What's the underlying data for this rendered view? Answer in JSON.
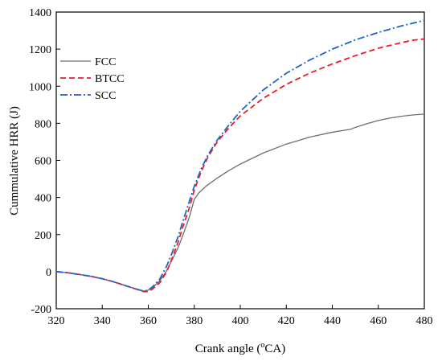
{
  "chart_data": {
    "type": "line",
    "title": "",
    "xlabel_main": "Crank angle (",
    "xlabel_sup": "o",
    "xlabel_tail": "CA)",
    "ylabel": "Cummulative HRR (J)",
    "xlim": [
      320,
      480
    ],
    "ylim": [
      -200,
      1400
    ],
    "xticks": [
      320,
      340,
      360,
      380,
      400,
      420,
      440,
      460,
      480
    ],
    "yticks": [
      -200,
      0,
      200,
      400,
      600,
      800,
      1000,
      1200,
      1400
    ],
    "legend_position": "upper-left",
    "grid": false,
    "series": [
      {
        "name": "FCC",
        "color": "#6e6e6e",
        "dash": "solid",
        "x": [
          320,
          325,
          330,
          335,
          340,
          345,
          350,
          355,
          358,
          360,
          362,
          365,
          368,
          370,
          373,
          375,
          378,
          380,
          382,
          385,
          390,
          395,
          400,
          410,
          420,
          430,
          440,
          445,
          448,
          450,
          455,
          460,
          465,
          470,
          475,
          480
        ],
        "y": [
          0,
          -6,
          -15,
          -25,
          -38,
          -55,
          -75,
          -95,
          -105,
          -100,
          -85,
          -50,
          5,
          55,
          130,
          195,
          300,
          390,
          425,
          460,
          505,
          545,
          580,
          640,
          688,
          725,
          752,
          762,
          768,
          778,
          798,
          815,
          828,
          838,
          845,
          850
        ]
      },
      {
        "name": "BTCC",
        "color": "#ee1c24",
        "dash": "7,4",
        "x": [
          320,
          325,
          330,
          335,
          340,
          345,
          350,
          355,
          358,
          360,
          362,
          365,
          368,
          370,
          373,
          375,
          378,
          380,
          383,
          386,
          390,
          395,
          400,
          410,
          420,
          430,
          440,
          450,
          460,
          470,
          475,
          480
        ],
        "y": [
          0,
          -6,
          -15,
          -25,
          -38,
          -55,
          -75,
          -95,
          -108,
          -108,
          -92,
          -60,
          0,
          60,
          160,
          240,
          350,
          440,
          540,
          620,
          700,
          775,
          840,
          935,
          1010,
          1070,
          1120,
          1165,
          1205,
          1235,
          1248,
          1255
        ]
      },
      {
        "name": "SCC",
        "color": "#1f64c8",
        "dash": "9,3,2,3",
        "x": [
          320,
          325,
          330,
          335,
          340,
          345,
          350,
          355,
          358,
          360,
          362,
          365,
          368,
          370,
          373,
          375,
          378,
          380,
          383,
          386,
          390,
          395,
          400,
          410,
          420,
          430,
          440,
          450,
          460,
          470,
          475,
          480
        ],
        "y": [
          0,
          -6,
          -15,
          -25,
          -38,
          -55,
          -75,
          -95,
          -105,
          -100,
          -80,
          -40,
          30,
          90,
          190,
          270,
          385,
          460,
          555,
          630,
          710,
          790,
          865,
          980,
          1070,
          1140,
          1200,
          1250,
          1290,
          1325,
          1340,
          1355
        ]
      }
    ]
  }
}
